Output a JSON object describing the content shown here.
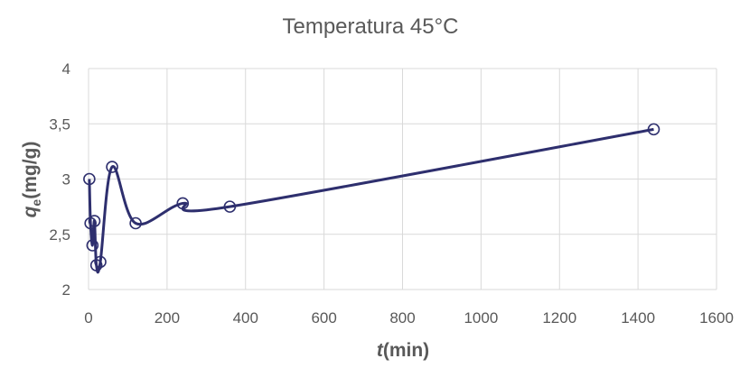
{
  "chart_data": {
    "type": "scatter",
    "title": "Temperatura 45°C",
    "xlabel": {
      "italic": "t",
      "rest": "(min)"
    },
    "ylabel": {
      "italic": "q",
      "sub": "e",
      "rest": "(mg/g)"
    },
    "xlim": [
      0,
      1600
    ],
    "ylim": [
      2,
      4
    ],
    "xticks": [
      0,
      200,
      400,
      600,
      800,
      1000,
      1200,
      1400,
      1600
    ],
    "yticks": [
      2,
      2.5,
      3,
      3.5,
      4
    ],
    "xtick_labels": [
      "0",
      "200",
      "400",
      "600",
      "800",
      "1000",
      "1200",
      "1400",
      "1600"
    ],
    "ytick_labels": [
      "2",
      "2,5",
      "3",
      "3,5",
      "4"
    ],
    "grid": true,
    "legend": "none",
    "smooth_line": true,
    "series": [
      {
        "color": "#2e2f6e",
        "x": [
          2,
          5,
          10,
          15,
          20,
          30,
          60,
          120,
          240,
          360,
          1440
        ],
        "y": [
          3.0,
          2.6,
          2.4,
          2.62,
          2.22,
          2.25,
          3.11,
          2.6,
          2.78,
          2.75,
          3.45
        ]
      }
    ]
  }
}
